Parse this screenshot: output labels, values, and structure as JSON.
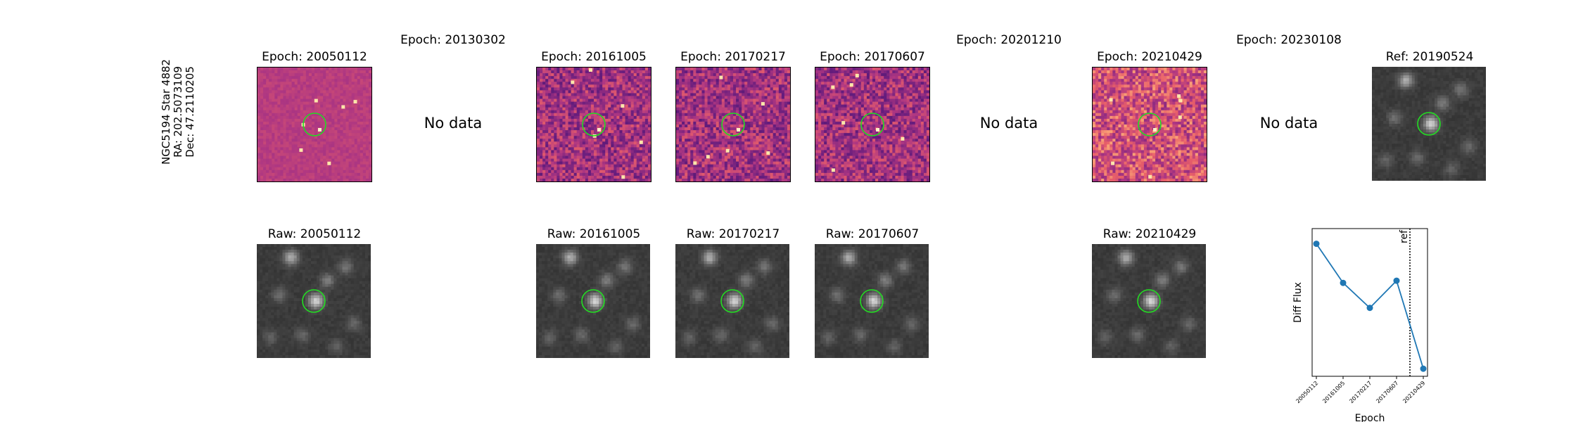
{
  "star_label": {
    "line1": "NGC5194 Star 4882",
    "line2": "RA: 202.5073109",
    "line3": "Dec: 47.2110205"
  },
  "diff_row": [
    {
      "title": "Epoch: 20050112",
      "has_data": true
    },
    {
      "title": "Epoch: 20130302",
      "has_data": false,
      "message": "No data"
    },
    {
      "title": "Epoch: 20161005",
      "has_data": true
    },
    {
      "title": "Epoch: 20170217",
      "has_data": true
    },
    {
      "title": "Epoch: 20170607",
      "has_data": true
    },
    {
      "title": "Epoch: 20201210",
      "has_data": false,
      "message": "No data"
    },
    {
      "title": "Epoch: 20210429",
      "has_data": true
    },
    {
      "title": "Epoch: 20230108",
      "has_data": false,
      "message": "No data"
    },
    {
      "title": "Ref: 20190524",
      "has_data": true
    }
  ],
  "raw_row": [
    {
      "title": "Raw: 20050112"
    },
    {
      "title": "Raw: 20161005"
    },
    {
      "title": "Raw: 20170217"
    },
    {
      "title": "Raw: 20170607"
    },
    {
      "title": "Raw: 20210429"
    }
  ],
  "colors": {
    "aperture": "#22dd22",
    "series": "#1f77b4"
  },
  "chart_data": {
    "type": "line",
    "xlabel": "Epoch",
    "ylabel": "Diff Flux",
    "categories": [
      "20050112",
      "20161005",
      "20170217",
      "20170607",
      "20210429"
    ],
    "values": [
      0.92,
      0.56,
      0.33,
      0.58,
      -0.23
    ],
    "ylim": [
      -0.3,
      1.06
    ],
    "ref_marker": {
      "label": "ref",
      "position": 3.5
    },
    "yticks": "hidden"
  }
}
